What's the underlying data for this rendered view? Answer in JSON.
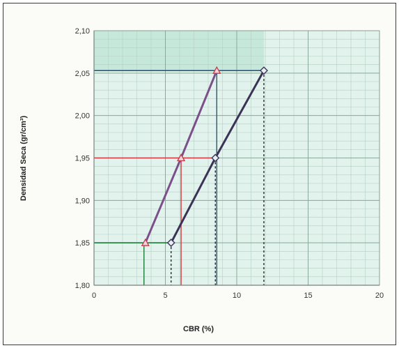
{
  "chart_data": {
    "type": "line",
    "title": "",
    "xlabel": "CBR  (%)",
    "ylabel": "Densidad Seca (gr/cm³)",
    "xlim": [
      0,
      20
    ],
    "ylim": [
      1.8,
      2.1
    ],
    "x_ticks": [
      0,
      5,
      10,
      15,
      20
    ],
    "x_tick_labels": [
      "0",
      "5",
      "10",
      "15",
      "20"
    ],
    "y_ticks": [
      1.8,
      1.85,
      1.9,
      1.95,
      2.0,
      2.05,
      2.1
    ],
    "y_tick_labels": [
      "1,80",
      "1,85",
      "1,90",
      "1,95",
      "2,00",
      "2,05",
      "2,10"
    ],
    "minor_x_step": 1,
    "minor_y_step": 0.01,
    "grid": true,
    "legend": "none",
    "series": [
      {
        "marker": "triangle",
        "color": "#7a4f8a",
        "points": [
          {
            "x": 3.6,
            "y": 1.85
          },
          {
            "x": 6.1,
            "y": 1.95
          },
          {
            "x": 8.6,
            "y": 2.053
          }
        ]
      },
      {
        "marker": "diamond",
        "color": "#3a3355",
        "points": [
          {
            "x": 5.4,
            "y": 1.85
          },
          {
            "x": 8.5,
            "y": 1.95
          },
          {
            "x": 11.9,
            "y": 2.053
          }
        ]
      }
    ],
    "reference_lines": [
      {
        "kind": "horizontal",
        "y": 1.85,
        "x_to": 5.4,
        "color": "#1f7a3a",
        "style": "solid"
      },
      {
        "kind": "horizontal",
        "y": 1.95,
        "x_to": 8.5,
        "color": "#d8323a",
        "style": "solid"
      },
      {
        "kind": "horizontal",
        "y": 2.053,
        "x_to": 11.9,
        "color": "#2a5a78",
        "style": "solid"
      },
      {
        "kind": "vertical",
        "x": 3.5,
        "y_to": 1.85,
        "color": "#1f7a3a",
        "style": "solid"
      },
      {
        "kind": "vertical",
        "x": 5.4,
        "y_to": 1.85,
        "color": "#222222",
        "style": "dashed"
      },
      {
        "kind": "vertical",
        "x": 6.1,
        "y_to": 1.95,
        "color": "#d8323a",
        "style": "solid"
      },
      {
        "kind": "vertical",
        "x": 8.5,
        "y_to": 1.95,
        "color": "#222222",
        "style": "dashed"
      },
      {
        "kind": "vertical",
        "x": 8.6,
        "y_to": 2.053,
        "color": "#2a5a78",
        "style": "solid"
      },
      {
        "kind": "vertical",
        "x": 11.9,
        "y_to": 2.053,
        "color": "#222222",
        "style": "dashed"
      }
    ],
    "colors": {
      "plot_background": "#e2f2ec",
      "highlight_band": "#c6e8da",
      "minor_grid": "#b5cfc4",
      "major_grid": "#8aa89c"
    }
  }
}
